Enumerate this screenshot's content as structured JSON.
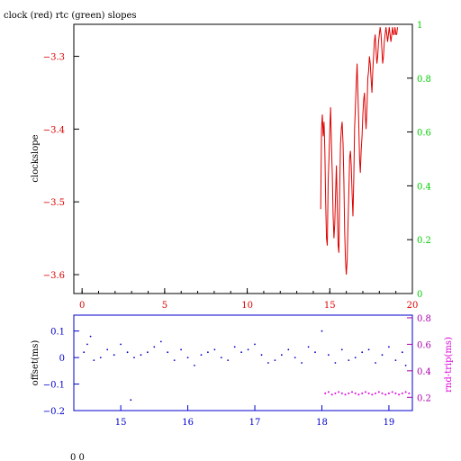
{
  "page": {
    "footer_text": "0 0"
  },
  "chart_data": [
    {
      "type": "line",
      "title": "clock (red) rtc (green) slopes",
      "ylabel": "clockslope",
      "xlabel": "",
      "xlim": [
        -0.5,
        20
      ],
      "ylim": [
        -3.626,
        -3.256
      ],
      "x_ticks": [
        0,
        5,
        10,
        15,
        20
      ],
      "y_ticks": [
        -3.3,
        -3.4,
        -3.5,
        -3.6
      ],
      "y2_label": "",
      "y2_lim": [
        0,
        1
      ],
      "y2_ticks": [
        0,
        0.2,
        0.4,
        0.6,
        0.8,
        1
      ],
      "grid": false,
      "colors": {
        "clock": "#dd0000",
        "rtc": "#00cc00",
        "axis": "#000000"
      },
      "series": [
        {
          "color": "#dd0000",
          "x": [
            14.45,
            14.5,
            14.55,
            14.6,
            14.65,
            14.7,
            14.75,
            14.8,
            14.85,
            14.9,
            14.95,
            15.0,
            15.05,
            15.1,
            15.15,
            15.2,
            15.25,
            15.3,
            15.35,
            15.4,
            15.45,
            15.5,
            15.55,
            15.6,
            15.65,
            15.7,
            15.75,
            15.8,
            15.85,
            15.9,
            15.95,
            16.0,
            16.05,
            16.1,
            16.15,
            16.2,
            16.25,
            16.3,
            16.35,
            16.4,
            16.45,
            16.5,
            16.55,
            16.6,
            16.65,
            16.7,
            16.75,
            16.8,
            16.85,
            16.9,
            16.95,
            17.0,
            17.05,
            17.1,
            17.15,
            17.2,
            17.25,
            17.3,
            17.35,
            17.4,
            17.45,
            17.5,
            17.55,
            17.6,
            17.65,
            17.7,
            17.75,
            17.8,
            17.85,
            17.9,
            17.95,
            18.0,
            18.05,
            18.1,
            18.15,
            18.2,
            18.25,
            18.3,
            18.35,
            18.4,
            18.45,
            18.5,
            18.55,
            18.6,
            18.65,
            18.7,
            18.75,
            18.8,
            18.85,
            18.9,
            18.95,
            19.0,
            19.05,
            19.1
          ],
          "values": [
            -3.51,
            -3.4,
            -3.38,
            -3.41,
            -3.39,
            -3.43,
            -3.5,
            -3.55,
            -3.56,
            -3.47,
            -3.44,
            -3.4,
            -3.37,
            -3.42,
            -3.46,
            -3.52,
            -3.55,
            -3.53,
            -3.49,
            -3.45,
            -3.5,
            -3.56,
            -3.57,
            -3.48,
            -3.42,
            -3.4,
            -3.39,
            -3.42,
            -3.47,
            -3.54,
            -3.58,
            -3.6,
            -3.58,
            -3.53,
            -3.49,
            -3.44,
            -3.43,
            -3.45,
            -3.49,
            -3.52,
            -3.47,
            -3.4,
            -3.37,
            -3.34,
            -3.31,
            -3.35,
            -3.39,
            -3.44,
            -3.46,
            -3.43,
            -3.41,
            -3.38,
            -3.36,
            -3.35,
            -3.38,
            -3.4,
            -3.37,
            -3.33,
            -3.32,
            -3.3,
            -3.31,
            -3.33,
            -3.35,
            -3.32,
            -3.3,
            -3.28,
            -3.27,
            -3.29,
            -3.31,
            -3.3,
            -3.28,
            -3.27,
            -3.26,
            -3.27,
            -3.29,
            -3.31,
            -3.3,
            -3.28,
            -3.27,
            -3.26,
            -3.27,
            -3.28,
            -3.27,
            -3.26,
            -3.27,
            -3.28,
            -3.27,
            -3.26,
            -3.27,
            -3.27,
            -3.26,
            -3.27,
            -3.27,
            -3.26
          ]
        }
      ]
    },
    {
      "type": "scatter",
      "title": "",
      "ylabel": "offset(ms)",
      "xlabel": "",
      "xlim": [
        14.3,
        19.35
      ],
      "ylim": [
        -0.2,
        0.16
      ],
      "x_ticks": [
        15,
        16,
        17,
        18,
        19
      ],
      "y_ticks": [
        0.1,
        0,
        -0.1,
        -0.2
      ],
      "y2_label": "rnd-trip(ms)",
      "y2_lim": [
        0.1,
        0.82
      ],
      "y2_ticks": [
        0.2,
        0.4,
        0.6,
        0.8
      ],
      "grid": false,
      "colors": {
        "offset": "#0000cc",
        "roundtrip": "#dd00dd",
        "axis": "#0000cc",
        "y2_axis": "#aa00aa"
      },
      "series": [
        {
          "color": "#0000cc",
          "x": [
            14.45,
            14.5,
            14.55,
            14.6,
            14.7,
            14.8,
            14.9,
            15.0,
            15.1,
            15.15,
            15.2,
            15.3,
            15.4,
            15.5,
            15.6,
            15.7,
            15.8,
            15.9,
            16.0,
            16.1,
            16.2,
            16.3,
            16.4,
            16.5,
            16.6,
            16.7,
            16.8,
            16.9,
            17.0,
            17.1,
            17.2,
            17.3,
            17.4,
            17.5,
            17.6,
            17.7,
            17.8,
            17.9,
            18.0,
            18.1,
            18.2,
            18.3,
            18.4,
            18.5,
            18.6,
            18.7,
            18.8,
            18.9,
            19.0,
            19.1,
            19.2,
            19.25
          ],
          "values": [
            0.02,
            0.05,
            0.08,
            -0.01,
            0.0,
            0.03,
            0.01,
            0.05,
            0.02,
            -0.16,
            0.0,
            0.01,
            0.02,
            0.04,
            0.06,
            0.02,
            -0.01,
            0.03,
            0.0,
            -0.03,
            0.01,
            0.02,
            0.03,
            0.0,
            -0.01,
            0.04,
            0.02,
            0.03,
            0.05,
            0.01,
            -0.02,
            -0.01,
            0.01,
            0.03,
            0.0,
            -0.02,
            0.04,
            0.02,
            0.1,
            0.01,
            -0.02,
            0.03,
            -0.01,
            0.0,
            0.02,
            0.03,
            -0.02,
            0.01,
            0.04,
            -0.01,
            0.02,
            -0.03
          ]
        },
        {
          "color": "#dd00dd",
          "x": [
            18.05,
            18.1,
            18.15,
            18.2,
            18.25,
            18.3,
            18.35,
            18.4,
            18.45,
            18.5,
            18.55,
            18.6,
            18.65,
            18.7,
            18.75,
            18.8,
            18.85,
            18.9,
            18.95,
            19.0,
            19.05,
            19.1,
            19.15,
            19.2,
            19.25,
            19.3
          ],
          "values": [
            0.23,
            0.24,
            0.22,
            0.23,
            0.24,
            0.23,
            0.22,
            0.23,
            0.24,
            0.23,
            0.22,
            0.23,
            0.24,
            0.23,
            0.22,
            0.23,
            0.24,
            0.23,
            0.22,
            0.23,
            0.24,
            0.23,
            0.22,
            0.23,
            0.24,
            0.23
          ]
        }
      ]
    }
  ]
}
